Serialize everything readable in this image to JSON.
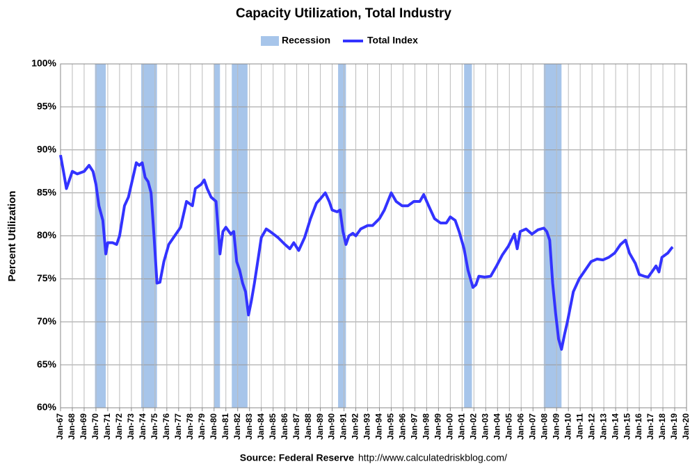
{
  "chart_data": {
    "type": "line",
    "title": "Capacity Utilization, Total Industry",
    "y_label": "Percent Utilization",
    "source": "Source: Federal Reserve",
    "source_url": "http://www.calculatedriskblog.com/",
    "grid": true,
    "legend": "top",
    "recessions": {
      "name": "Recession",
      "color": "#a7c5ea",
      "periods": [
        {
          "start": "1969-12",
          "end": "1970-11"
        },
        {
          "start": "1973-11",
          "end": "1975-03"
        },
        {
          "start": "1980-01",
          "end": "1980-07"
        },
        {
          "start": "1981-07",
          "end": "1982-11"
        },
        {
          "start": "1990-07",
          "end": "1991-03"
        },
        {
          "start": "2001-03",
          "end": "2001-11"
        },
        {
          "start": "2007-12",
          "end": "2009-06"
        }
      ]
    },
    "series": [
      {
        "name": "Total Index",
        "color": "#3333ff",
        "x": [
          "1967-01",
          "1967-04",
          "1967-07",
          "1967-10",
          "1968-01",
          "1968-06",
          "1969-01",
          "1969-06",
          "1969-10",
          "1970-01",
          "1970-04",
          "1970-08",
          "1970-11",
          "1971-01",
          "1971-06",
          "1971-10",
          "1972-01",
          "1972-06",
          "1972-10",
          "1973-03",
          "1973-06",
          "1973-09",
          "1973-12",
          "1974-03",
          "1974-06",
          "1974-09",
          "1974-12",
          "1975-03",
          "1975-06",
          "1975-10",
          "1976-03",
          "1976-09",
          "1977-03",
          "1977-09",
          "1978-03",
          "1978-06",
          "1978-12",
          "1979-03",
          "1979-06",
          "1979-10",
          "1980-01",
          "1980-03",
          "1980-06",
          "1980-07",
          "1980-10",
          "1981-01",
          "1981-06",
          "1981-09",
          "1981-12",
          "1982-03",
          "1982-06",
          "1982-09",
          "1982-12",
          "1983-03",
          "1983-06",
          "1983-10",
          "1984-01",
          "1984-06",
          "1984-10",
          "1985-06",
          "1986-01",
          "1986-06",
          "1986-10",
          "1987-03",
          "1987-09",
          "1988-03",
          "1988-09",
          "1989-01",
          "1989-06",
          "1989-10",
          "1990-01",
          "1990-06",
          "1990-09",
          "1990-12",
          "1991-03",
          "1991-06",
          "1991-10",
          "1992-01",
          "1992-06",
          "1993-01",
          "1993-06",
          "1994-01",
          "1994-06",
          "1995-01",
          "1995-06",
          "1995-12",
          "1996-06",
          "1996-12",
          "1997-06",
          "1997-10",
          "1998-03",
          "1998-09",
          "1999-03",
          "1999-09",
          "2000-01",
          "2000-06",
          "2000-10",
          "2001-03",
          "2001-07",
          "2001-12",
          "2002-03",
          "2002-06",
          "2002-12",
          "2003-06",
          "2003-12",
          "2004-06",
          "2004-12",
          "2005-06",
          "2005-09",
          "2005-12",
          "2006-06",
          "2006-12",
          "2007-06",
          "2007-12",
          "2008-03",
          "2008-06",
          "2008-09",
          "2008-12",
          "2009-03",
          "2009-06",
          "2009-09",
          "2009-12",
          "2010-06",
          "2010-12",
          "2011-06",
          "2011-12",
          "2012-06",
          "2012-12",
          "2013-06",
          "2013-12",
          "2014-06",
          "2014-11",
          "2015-03",
          "2015-09",
          "2016-01",
          "2016-06",
          "2016-10",
          "2017-03",
          "2017-06",
          "2017-09",
          "2017-12",
          "2018-06",
          "2018-10",
          "2018-11"
        ],
        "values": [
          89.4,
          87.5,
          85.5,
          86.5,
          87.5,
          87.2,
          87.5,
          88.2,
          87.5,
          86,
          83.5,
          81.8,
          77.9,
          79.2,
          79.2,
          79,
          80,
          83.5,
          84.5,
          87,
          88.5,
          88.2,
          88.5,
          86.8,
          86.3,
          85,
          80,
          74.5,
          74.6,
          77,
          79,
          80,
          81,
          84,
          83.5,
          85.5,
          86,
          86.5,
          85.5,
          84.5,
          84.2,
          84,
          79.5,
          77.9,
          80.5,
          81,
          80.2,
          80.5,
          77,
          76,
          74.5,
          73.5,
          70.8,
          72.5,
          74.5,
          77.5,
          79.8,
          80.8,
          80.5,
          79.8,
          79,
          78.5,
          79.2,
          78.3,
          79.8,
          82,
          83.8,
          84.3,
          85,
          84,
          83,
          82.8,
          83,
          80.5,
          79,
          80,
          80.3,
          80,
          80.8,
          81.2,
          81.2,
          82,
          83,
          85,
          84,
          83.5,
          83.5,
          84,
          84,
          84.8,
          83.5,
          82,
          81.5,
          81.5,
          82.2,
          81.8,
          80.5,
          78.5,
          76,
          74,
          74.3,
          75.3,
          75.2,
          75.3,
          76.5,
          77.8,
          78.8,
          80.2,
          78.5,
          80.5,
          80.8,
          80.2,
          80.7,
          80.9,
          80.5,
          79.5,
          74.5,
          71,
          68,
          66.8,
          68.5,
          70,
          73.5,
          75,
          76,
          77,
          77.3,
          77.2,
          77.5,
          78,
          79,
          79.5,
          78,
          76.8,
          75.5,
          75.3,
          75.2,
          76,
          76.5,
          75.8,
          77.5,
          78,
          78.6,
          78.7
        ]
      }
    ],
    "ylim": [
      60,
      100
    ],
    "yticks": [
      {
        "value": 60,
        "label": "60%"
      },
      {
        "value": 65,
        "label": "65%"
      },
      {
        "value": 70,
        "label": "70%"
      },
      {
        "value": 75,
        "label": "75%"
      },
      {
        "value": 80,
        "label": "80%"
      },
      {
        "value": 85,
        "label": "85%"
      },
      {
        "value": 90,
        "label": "90%"
      },
      {
        "value": 95,
        "label": "95%"
      },
      {
        "value": 100,
        "label": "100%"
      }
    ],
    "xlim": [
      "1967-01",
      "2020-01"
    ],
    "xticks": [
      {
        "value": "1967-01",
        "label": "Jan-67"
      },
      {
        "value": "1968-01",
        "label": "Jan-68"
      },
      {
        "value": "1969-01",
        "label": "Jan-69"
      },
      {
        "value": "1970-01",
        "label": "Jan-70"
      },
      {
        "value": "1971-01",
        "label": "Jan-71"
      },
      {
        "value": "1972-01",
        "label": "Jan-72"
      },
      {
        "value": "1973-01",
        "label": "Jan-73"
      },
      {
        "value": "1974-01",
        "label": "Jan-74"
      },
      {
        "value": "1975-01",
        "label": "Jan-75"
      },
      {
        "value": "1976-01",
        "label": "Jan-76"
      },
      {
        "value": "1977-01",
        "label": "Jan-77"
      },
      {
        "value": "1978-01",
        "label": "Jan-78"
      },
      {
        "value": "1979-01",
        "label": "Jan-79"
      },
      {
        "value": "1980-01",
        "label": "Jan-80"
      },
      {
        "value": "1981-01",
        "label": "Jan-81"
      },
      {
        "value": "1982-01",
        "label": "Jan-82"
      },
      {
        "value": "1983-01",
        "label": "Jan-83"
      },
      {
        "value": "1984-01",
        "label": "Jan-84"
      },
      {
        "value": "1985-01",
        "label": "Jan-85"
      },
      {
        "value": "1986-01",
        "label": "Jan-86"
      },
      {
        "value": "1987-01",
        "label": "Jan-87"
      },
      {
        "value": "1988-01",
        "label": "Jan-88"
      },
      {
        "value": "1989-01",
        "label": "Jan-89"
      },
      {
        "value": "1990-01",
        "label": "Jan-90"
      },
      {
        "value": "1991-01",
        "label": "Jan-91"
      },
      {
        "value": "1992-01",
        "label": "Jan-92"
      },
      {
        "value": "1993-01",
        "label": "Jan-93"
      },
      {
        "value": "1994-01",
        "label": "Jan-94"
      },
      {
        "value": "1995-01",
        "label": "Jan-95"
      },
      {
        "value": "1996-01",
        "label": "Jan-96"
      },
      {
        "value": "1997-01",
        "label": "Jan-97"
      },
      {
        "value": "1998-01",
        "label": "Jan-98"
      },
      {
        "value": "1999-01",
        "label": "Jan-99"
      },
      {
        "value": "2000-01",
        "label": "Jan-00"
      },
      {
        "value": "2001-01",
        "label": "Jan-01"
      },
      {
        "value": "2002-01",
        "label": "Jan-02"
      },
      {
        "value": "2003-01",
        "label": "Jan-03"
      },
      {
        "value": "2004-01",
        "label": "Jan-04"
      },
      {
        "value": "2005-01",
        "label": "Jan-05"
      },
      {
        "value": "2006-01",
        "label": "Jan-06"
      },
      {
        "value": "2007-01",
        "label": "Jan-07"
      },
      {
        "value": "2008-01",
        "label": "Jan-08"
      },
      {
        "value": "2009-01",
        "label": "Jan-09"
      },
      {
        "value": "2010-01",
        "label": "Jan-10"
      },
      {
        "value": "2011-01",
        "label": "Jan-11"
      },
      {
        "value": "2012-01",
        "label": "Jan-12"
      },
      {
        "value": "2013-01",
        "label": "Jan-13"
      },
      {
        "value": "2014-01",
        "label": "Jan-14"
      },
      {
        "value": "2015-01",
        "label": "Jan-15"
      },
      {
        "value": "2016-01",
        "label": "Jan-16"
      },
      {
        "value": "2017-01",
        "label": "Jan-17"
      },
      {
        "value": "2018-01",
        "label": "Jan-18"
      },
      {
        "value": "2019-01",
        "label": "Jan-19"
      },
      {
        "value": "2020-01",
        "label": "Jan-20"
      }
    ]
  }
}
